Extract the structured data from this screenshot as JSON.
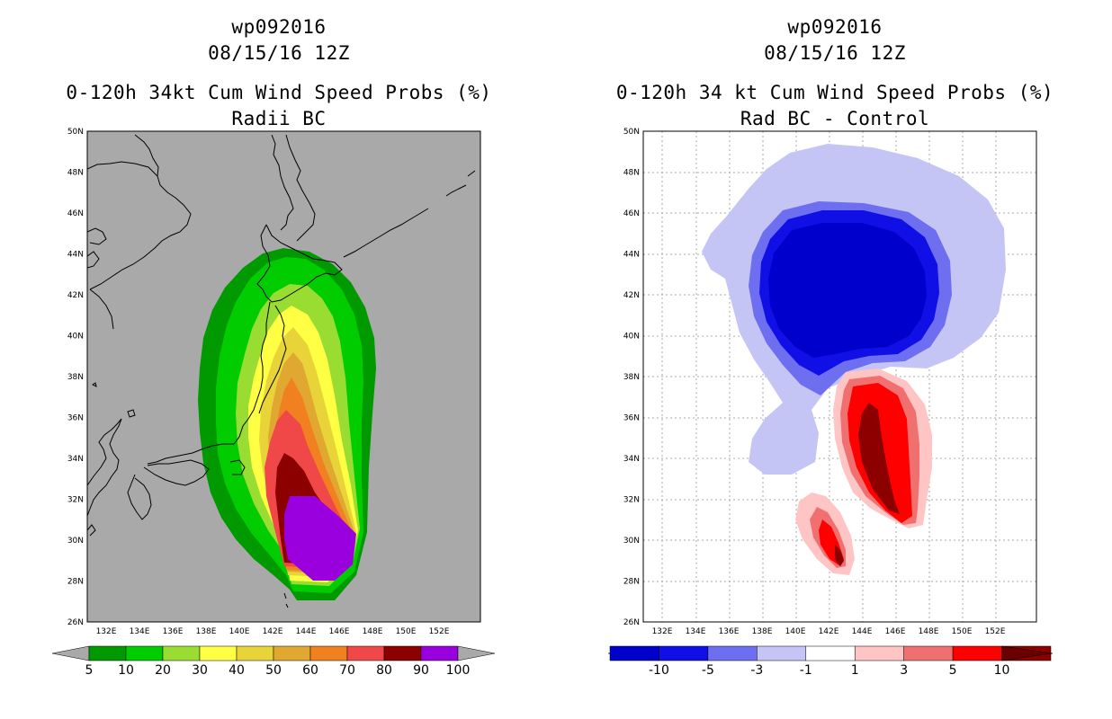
{
  "left_panel": {
    "storm_id": "wp092016",
    "datetime": "08/15/16 12Z",
    "product": "0-120h 34kt Cum Wind Speed Probs (%)",
    "subtitle": "Radii BC",
    "colorbar": {
      "labels": [
        "5",
        "10",
        "20",
        "30",
        "40",
        "50",
        "60",
        "70",
        "80",
        "90",
        "100"
      ],
      "colors": [
        "#009900",
        "#00cc00",
        "#99dd33",
        "#ffff44",
        "#e8d438",
        "#e0a830",
        "#f08020",
        "#f04848",
        "#8c0000",
        "#9900dd"
      ]
    }
  },
  "right_panel": {
    "storm_id": "wp092016",
    "datetime": "08/15/16 12Z",
    "product": "0-120h 34 kt Cum Wind Speed Probs (%)",
    "subtitle": "Rad BC - Control",
    "colorbar": {
      "labels": [
        "-10",
        "-5",
        "-3",
        "-1",
        "1",
        "3",
        "5",
        "10"
      ],
      "colors": [
        "#0000cc",
        "#0f0fe6",
        "#6e6ef0",
        "#c4c4f5",
        "#ffffff",
        "#ffc4c4",
        "#f07070",
        "#ff0000",
        "#8c0000"
      ]
    }
  },
  "axes": {
    "lat_labels": [
      "50N",
      "48N",
      "46N",
      "44N",
      "42N",
      "40N",
      "38N",
      "36N",
      "34N",
      "32N",
      "30N",
      "28N",
      "26N"
    ],
    "lon_labels": [
      "132E",
      "134E",
      "136E",
      "138E",
      "140E",
      "142E",
      "144E",
      "146E",
      "148E",
      "150E",
      "152E"
    ]
  }
}
